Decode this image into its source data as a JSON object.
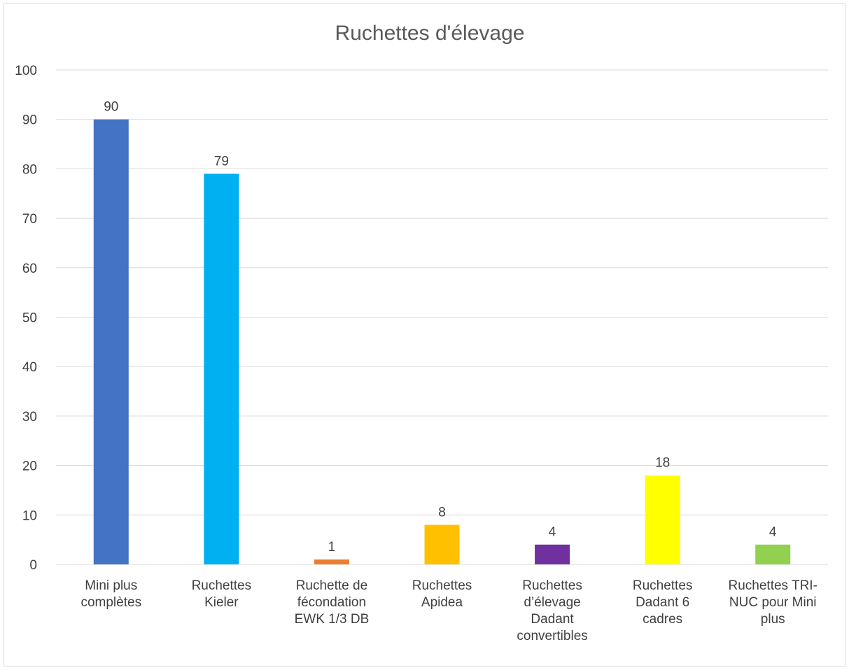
{
  "chart_data": {
    "type": "bar",
    "title": "Ruchettes d'élevage",
    "categories": [
      [
        "Mini plus",
        "complètes"
      ],
      [
        "Ruchettes",
        "Kieler"
      ],
      [
        "Ruchette de",
        "fécondation",
        "EWK 1/3 DB"
      ],
      [
        "Ruchettes",
        "Apidea"
      ],
      [
        "Ruchettes",
        "d’élevage",
        "Dadant",
        "convertibles"
      ],
      [
        "Ruchettes",
        "Dadant 6",
        "cadres"
      ],
      [
        "Ruchettes TRI-",
        "NUC pour Mini",
        "plus"
      ]
    ],
    "values": [
      90,
      79,
      1,
      8,
      4,
      18,
      4
    ],
    "colors": [
      "#4472c4",
      "#00b0f0",
      "#ed7d31",
      "#ffc000",
      "#7030a0",
      "#ffff00",
      "#92d050"
    ],
    "ylim": [
      0,
      100
    ],
    "yticks": [
      0,
      10,
      20,
      30,
      40,
      50,
      60,
      70,
      80,
      90,
      100
    ],
    "xlabel": "",
    "ylabel": "",
    "grid": true,
    "legend": "none"
  }
}
